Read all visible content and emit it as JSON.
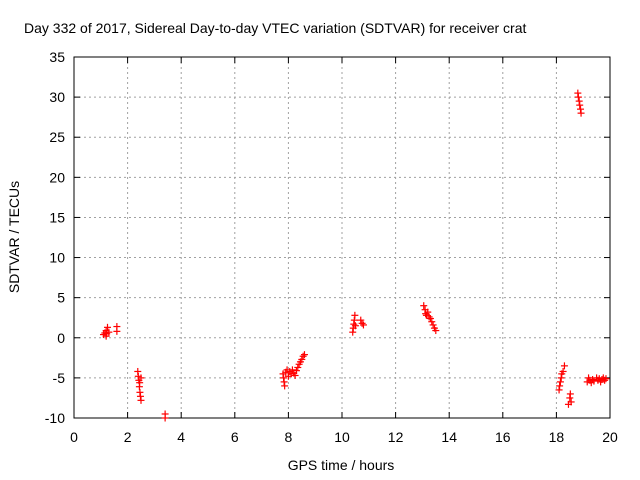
{
  "chart_data": {
    "type": "scatter",
    "title": "Day 332 of 2017, Sidereal Day-to-day VTEC variation (SDTVAR) for receiver crat",
    "xlabel": "GPS time / hours",
    "ylabel": "SDTVAR / TECUs",
    "xlim": [
      0,
      20
    ],
    "ylim": [
      -10,
      35
    ],
    "xticks": [
      "0",
      "2",
      "4",
      "6",
      "8",
      "10",
      "12",
      "14",
      "16",
      "18",
      "20"
    ],
    "yticks": [
      "-10",
      "-5",
      "0",
      "5",
      "10",
      "15",
      "20",
      "25",
      "30",
      "35"
    ],
    "grid": true,
    "marker": "plus",
    "color": "#ff0000",
    "series": [
      {
        "name": "SDTVAR",
        "points": [
          [
            1.1,
            0.4
          ],
          [
            1.15,
            0.6
          ],
          [
            1.2,
            0.9
          ],
          [
            1.2,
            0.2
          ],
          [
            1.25,
            1.3
          ],
          [
            1.3,
            0.7
          ],
          [
            1.22,
            0.5
          ],
          [
            1.6,
            0.8
          ],
          [
            1.6,
            1.4
          ],
          [
            2.38,
            -4.2
          ],
          [
            2.4,
            -4.8
          ],
          [
            2.42,
            -5.3
          ],
          [
            2.45,
            -5.6
          ],
          [
            2.44,
            -6.1
          ],
          [
            2.46,
            -6.8
          ],
          [
            2.48,
            -7.3
          ],
          [
            2.5,
            -7.8
          ],
          [
            2.5,
            -5.0
          ],
          [
            3.4,
            -9.5
          ],
          [
            3.4,
            -10.0
          ],
          [
            7.8,
            -4.5
          ],
          [
            7.82,
            -5.0
          ],
          [
            7.84,
            -5.5
          ],
          [
            7.86,
            -6.0
          ],
          [
            7.9,
            -4.3
          ],
          [
            7.95,
            -4.0
          ],
          [
            8.0,
            -4.8
          ],
          [
            8.05,
            -4.2
          ],
          [
            8.1,
            -4.5
          ],
          [
            8.15,
            -4.0
          ],
          [
            8.2,
            -4.4
          ],
          [
            8.25,
            -4.7
          ],
          [
            8.3,
            -4.1
          ],
          [
            8.35,
            -3.7
          ],
          [
            8.4,
            -3.3
          ],
          [
            8.45,
            -3.0
          ],
          [
            8.5,
            -2.7
          ],
          [
            8.55,
            -2.3
          ],
          [
            8.6,
            -2.1
          ],
          [
            10.4,
            0.7
          ],
          [
            10.42,
            1.2
          ],
          [
            10.44,
            1.7
          ],
          [
            10.46,
            2.2
          ],
          [
            10.48,
            2.8
          ],
          [
            10.5,
            1.5
          ],
          [
            10.7,
            2.2
          ],
          [
            10.75,
            1.8
          ],
          [
            10.8,
            1.6
          ],
          [
            13.05,
            4.0
          ],
          [
            13.1,
            3.5
          ],
          [
            13.12,
            3.0
          ],
          [
            13.15,
            2.8
          ],
          [
            13.2,
            3.2
          ],
          [
            13.25,
            2.6
          ],
          [
            13.3,
            2.4
          ],
          [
            13.35,
            2.0
          ],
          [
            13.4,
            1.6
          ],
          [
            13.45,
            1.2
          ],
          [
            13.5,
            0.9
          ],
          [
            18.1,
            -6.5
          ],
          [
            18.12,
            -6.0
          ],
          [
            18.15,
            -5.5
          ],
          [
            18.18,
            -5.0
          ],
          [
            18.2,
            -4.5
          ],
          [
            18.25,
            -4.2
          ],
          [
            18.3,
            -3.5
          ],
          [
            18.45,
            -8.3
          ],
          [
            18.5,
            -7.5
          ],
          [
            18.52,
            -7.0
          ],
          [
            18.55,
            -8.0
          ],
          [
            18.8,
            30.5
          ],
          [
            18.82,
            30.0
          ],
          [
            18.85,
            29.5
          ],
          [
            18.87,
            29.0
          ],
          [
            18.9,
            28.5
          ],
          [
            18.92,
            28.0
          ],
          [
            19.15,
            -5.5
          ],
          [
            19.2,
            -5.0
          ],
          [
            19.25,
            -5.3
          ],
          [
            19.3,
            -5.6
          ],
          [
            19.35,
            -5.2
          ],
          [
            19.4,
            -5.4
          ],
          [
            19.5,
            -5.0
          ],
          [
            19.55,
            -5.3
          ],
          [
            19.6,
            -5.1
          ],
          [
            19.65,
            -5.5
          ],
          [
            19.7,
            -5.2
          ],
          [
            19.75,
            -5.0
          ],
          [
            19.8,
            -5.3
          ],
          [
            19.85,
            -5.1
          ]
        ]
      }
    ]
  }
}
